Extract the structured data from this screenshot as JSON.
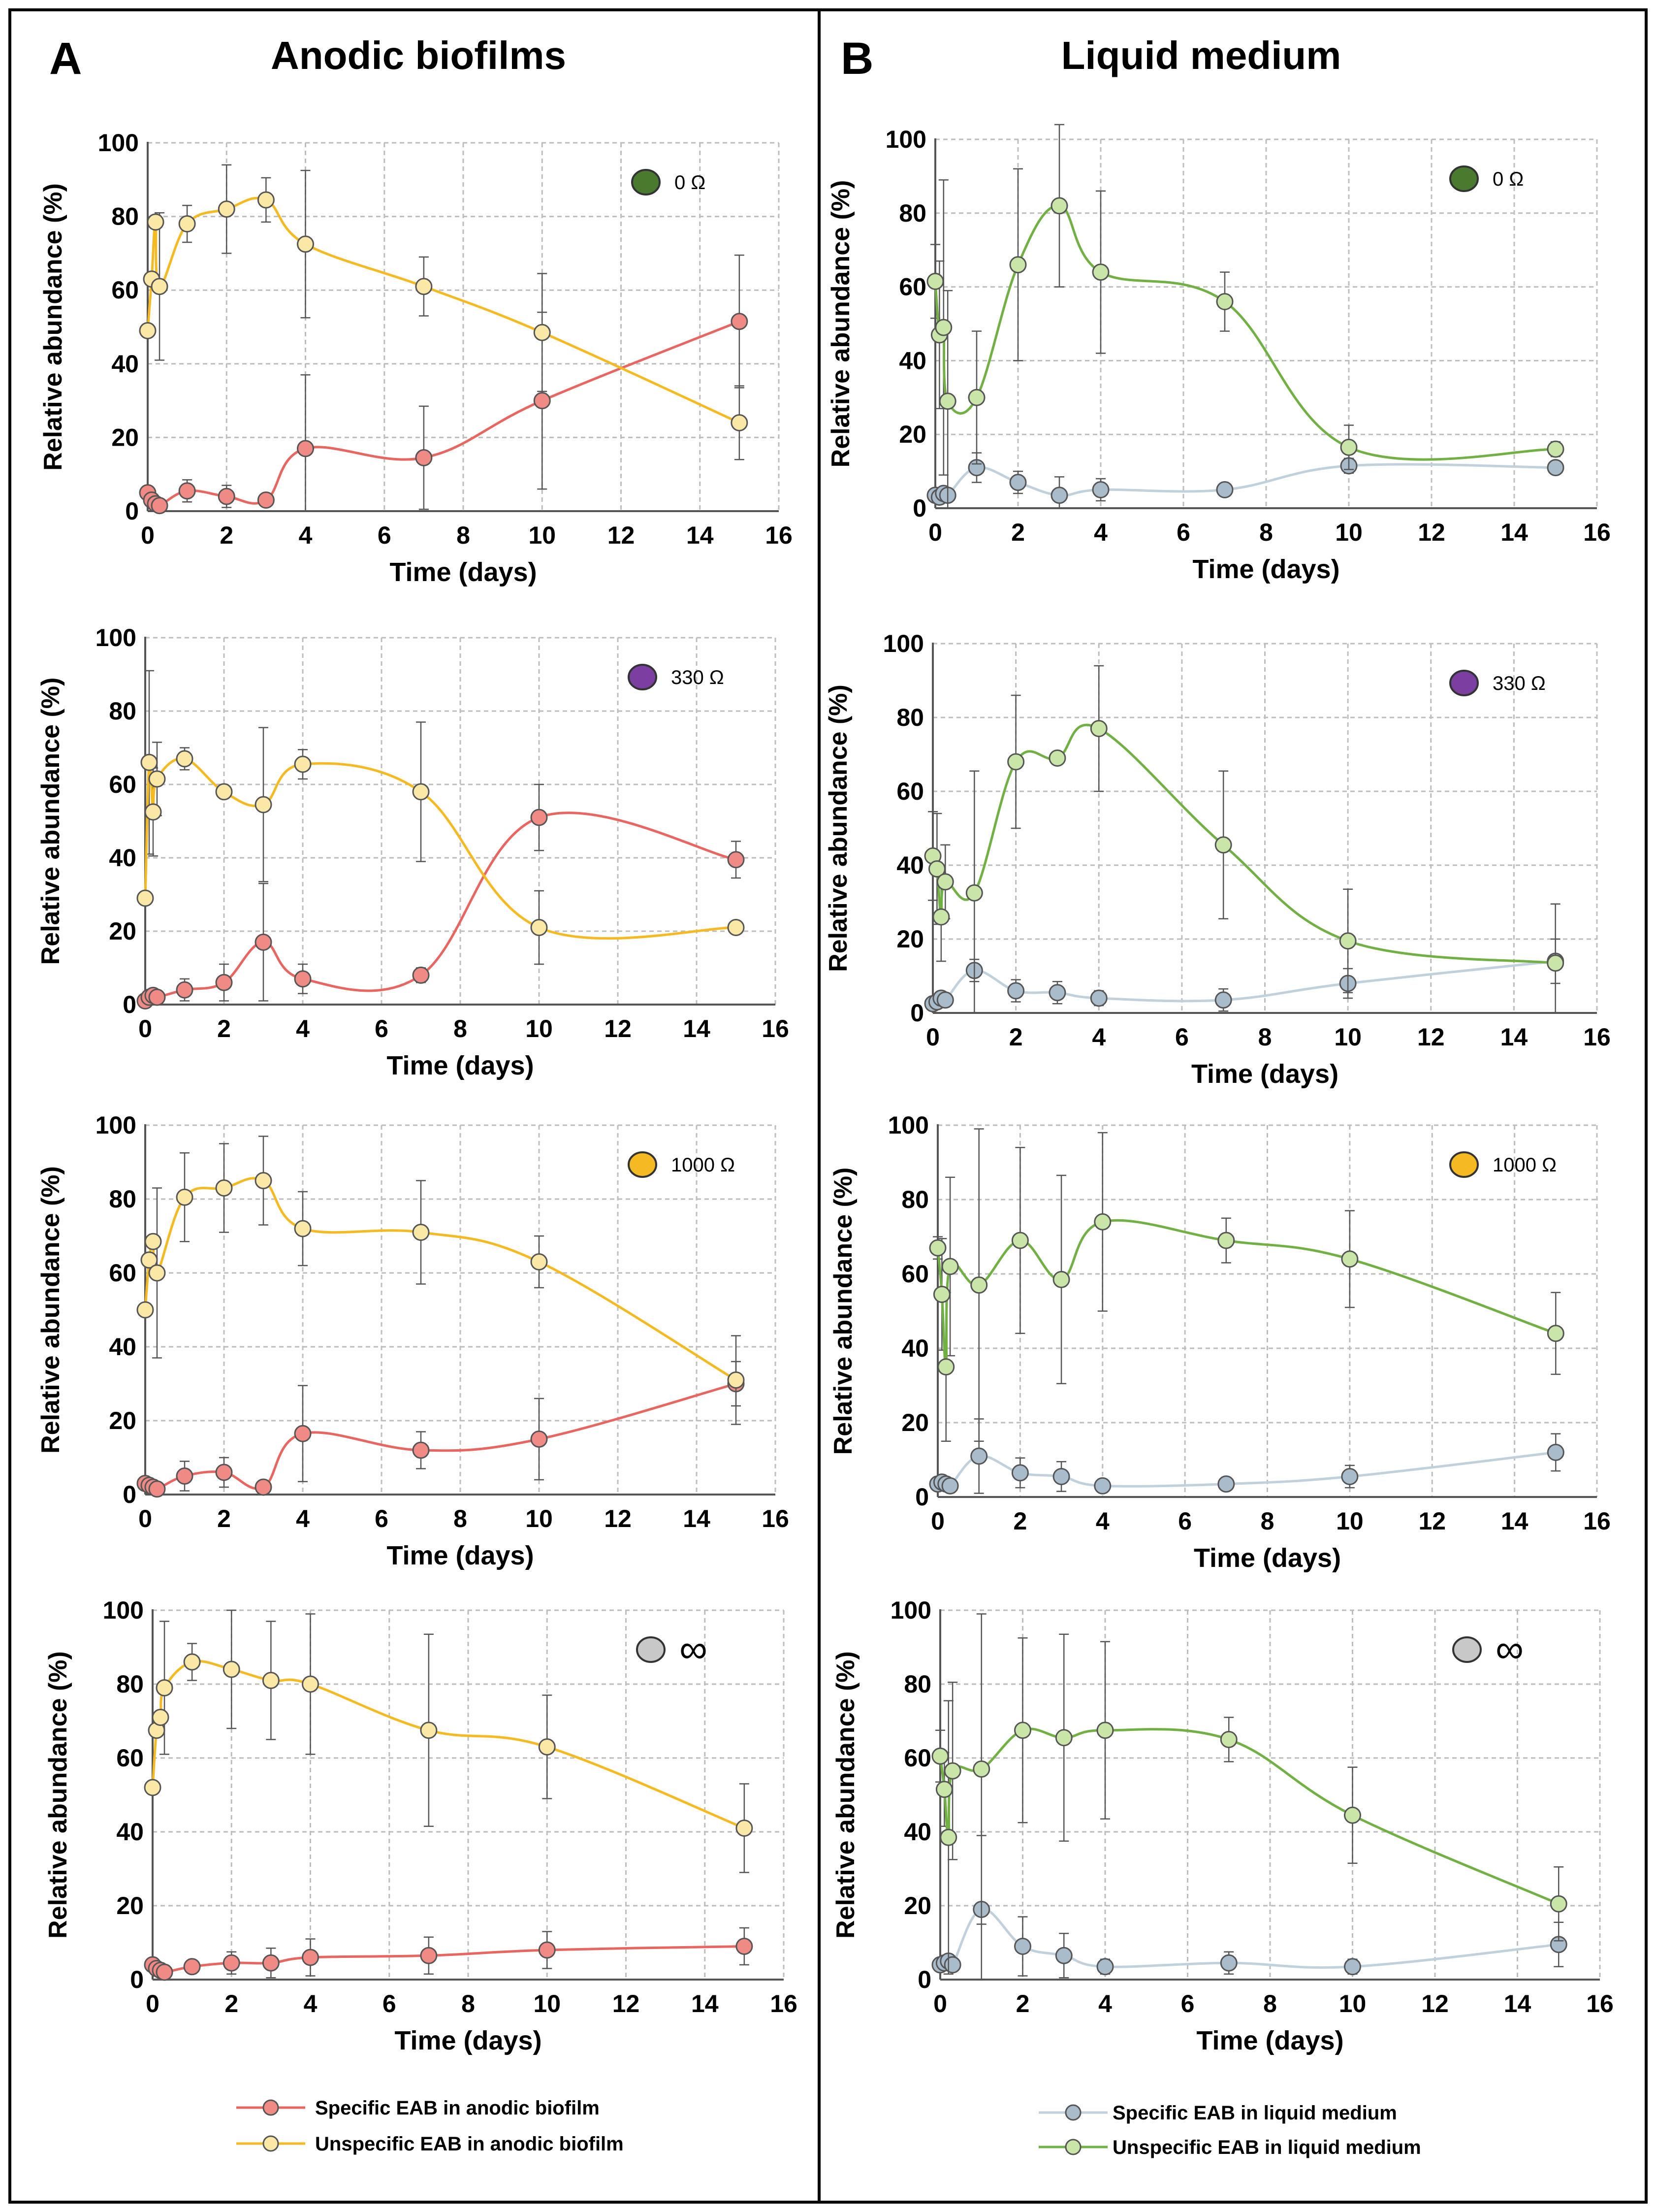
{
  "figure": {
    "panel_a": {
      "letter": "A",
      "title": "Anodic biofilms"
    },
    "panel_b": {
      "letter": "B",
      "title": "Liquid medium"
    },
    "legend_a": {
      "specific": "Specific EAB in anodic biofilm",
      "unspecific": "Unspecific EAB in anodic biofilm"
    },
    "legend_b": {
      "specific": "Specific EAB in liquid medium",
      "unspecific": "Unspecific EAB in liquid medium"
    }
  },
  "colors": {
    "specific_biofilm_fill": "#f08a85",
    "specific_biofilm_line": "#e8665f",
    "unspecific_biofilm_fill": "#fbe8a6",
    "unspecific_biofilm_line": "#f5b921",
    "specific_liquid_fill": "#a9bccb",
    "specific_liquid_line": "#c0d0dc",
    "unspecific_liquid_fill": "#c9e6a8",
    "unspecific_liquid_line": "#71b043",
    "res_0": "#4a7a2e",
    "res_330": "#7a3fa0",
    "res_1000": "#f5b921",
    "res_inf": "#c8c8c8"
  },
  "chart_data": [
    {
      "type": "line",
      "panel": "A",
      "xlabel": "Time (days)",
      "ylabel": "Relative abundance (%)",
      "xlim": [
        0,
        16
      ],
      "ylim": [
        0,
        100
      ],
      "xticks": [
        "0",
        "2",
        "4",
        "6",
        "8",
        "10",
        "12",
        "14",
        "16"
      ],
      "yticks": [
        "0",
        "20",
        "40",
        "60",
        "80",
        "100"
      ],
      "resistance": "0 Ω",
      "marker_color": "#4a7a2e",
      "series": [
        {
          "name": "Specific EAB in anodic biofilm",
          "x": [
            0,
            0.1,
            0.2,
            0.3,
            1,
            2,
            3,
            4,
            7,
            10,
            15
          ],
          "y": [
            5,
            3,
            2,
            1.5,
            5.5,
            4,
            3,
            17,
            14.5,
            30,
            51.5
          ],
          "err": [
            0,
            0,
            0,
            0,
            3,
            3,
            0,
            20,
            14,
            24,
            18
          ]
        },
        {
          "name": "Unspecific EAB in anodic biofilm",
          "x": [
            0,
            0.1,
            0.2,
            0.3,
            1,
            2,
            3,
            4,
            7,
            10,
            15
          ],
          "y": [
            49,
            63,
            78.5,
            61,
            78,
            82,
            84.5,
            72.5,
            61,
            48.5,
            24
          ],
          "err": [
            0,
            0,
            0,
            20,
            5,
            12,
            6,
            20,
            8,
            16,
            10
          ]
        }
      ]
    },
    {
      "type": "line",
      "panel": "B",
      "xlabel": "Time (days)",
      "ylabel": "Relative abundance (%)",
      "xlim": [
        0,
        16
      ],
      "ylim": [
        0,
        100
      ],
      "xticks": [
        "0",
        "2",
        "4",
        "6",
        "8",
        "10",
        "12",
        "14",
        "16"
      ],
      "yticks": [
        "0",
        "20",
        "40",
        "60",
        "80",
        "100"
      ],
      "resistance": "0 Ω",
      "marker_color": "#4a7a2e",
      "series": [
        {
          "name": "Specific EAB in liquid medium",
          "x": [
            0,
            0.1,
            0.2,
            0.3,
            1,
            2,
            3,
            4,
            7,
            10,
            15
          ],
          "y": [
            3.5,
            3,
            4,
            3.5,
            11,
            7,
            3.5,
            5,
            5,
            11.5,
            11
          ],
          "err": [
            0,
            0,
            0,
            0,
            4,
            3,
            5,
            3,
            1,
            2,
            1
          ]
        },
        {
          "name": "Unspecific EAB in liquid medium",
          "x": [
            0,
            0.1,
            0.2,
            0.3,
            1,
            2,
            3,
            4,
            7,
            10,
            15
          ],
          "y": [
            61.5,
            47,
            49,
            29,
            30,
            66,
            82,
            64,
            56,
            16.5,
            16
          ],
          "err": [
            10,
            20,
            40,
            30,
            18,
            26,
            22,
            22,
            8,
            6,
            2
          ]
        }
      ]
    },
    {
      "type": "line",
      "panel": "A",
      "xlabel": "Time (days)",
      "ylabel": "Relative abundance (%)",
      "xlim": [
        0,
        16
      ],
      "ylim": [
        0,
        100
      ],
      "xticks": [
        "0",
        "2",
        "4",
        "6",
        "8",
        "10",
        "12",
        "14",
        "16"
      ],
      "yticks": [
        "0",
        "20",
        "40",
        "60",
        "80",
        "100"
      ],
      "resistance": "330 Ω",
      "marker_color": "#7a3fa0",
      "series": [
        {
          "name": "Specific EAB in anodic biofilm",
          "x": [
            0,
            0.1,
            0.2,
            0.3,
            1,
            2,
            3,
            4,
            7,
            10,
            15
          ],
          "y": [
            1,
            2,
            2.5,
            2,
            4,
            6,
            17,
            7,
            8,
            51,
            39.5
          ],
          "err": [
            0,
            0,
            0,
            0,
            3,
            5,
            16,
            4,
            2,
            9,
            5
          ]
        },
        {
          "name": "Unspecific EAB in anodic biofilm",
          "x": [
            0,
            0.1,
            0.2,
            0.3,
            1,
            2,
            3,
            4,
            7,
            10,
            15
          ],
          "y": [
            29,
            66,
            52.5,
            61.5,
            67,
            58,
            54.5,
            65.5,
            58,
            21,
            21
          ],
          "err": [
            0,
            25,
            12,
            10,
            3,
            0,
            21,
            4,
            19,
            10,
            1
          ]
        }
      ]
    },
    {
      "type": "line",
      "panel": "B",
      "xlabel": "Time (days)",
      "ylabel": "Relative abundance (%)",
      "xlim": [
        0,
        16
      ],
      "ylim": [
        0,
        100
      ],
      "xticks": [
        "0",
        "2",
        "4",
        "6",
        "8",
        "10",
        "12",
        "14",
        "16"
      ],
      "yticks": [
        "0",
        "20",
        "40",
        "60",
        "80",
        "100"
      ],
      "resistance": "330 Ω",
      "marker_color": "#7a3fa0",
      "series": [
        {
          "name": "Specific EAB in liquid medium",
          "x": [
            0,
            0.1,
            0.2,
            0.3,
            1,
            2,
            3,
            4,
            7,
            10,
            15
          ],
          "y": [
            2.5,
            3,
            4,
            3.5,
            11.5,
            6,
            5.5,
            4,
            3.5,
            8,
            14
          ],
          "err": [
            0,
            0,
            0,
            0,
            3,
            3,
            3,
            2,
            3,
            4,
            6
          ]
        },
        {
          "name": "Unspecific EAB in liquid medium",
          "x": [
            0,
            0.1,
            0.2,
            0.3,
            1,
            2,
            3,
            4,
            7,
            10,
            15
          ],
          "y": [
            42.5,
            39,
            26,
            35.5,
            32.5,
            68,
            69,
            77,
            45.5,
            19.5,
            13.5
          ],
          "err": [
            12,
            15,
            12,
            10,
            33,
            18,
            0,
            17,
            20,
            14,
            16
          ]
        }
      ]
    },
    {
      "type": "line",
      "panel": "A",
      "xlabel": "Time (days)",
      "ylabel": "Relative abundance (%)",
      "xlim": [
        0,
        16
      ],
      "ylim": [
        0,
        100
      ],
      "xticks": [
        "0",
        "2",
        "4",
        "6",
        "8",
        "10",
        "12",
        "14",
        "16"
      ],
      "yticks": [
        "0",
        "20",
        "40",
        "60",
        "80",
        "100"
      ],
      "resistance": "1000 Ω",
      "marker_color": "#f5b921",
      "series": [
        {
          "name": "Specific EAB in anodic biofilm",
          "x": [
            0,
            0.1,
            0.2,
            0.3,
            1,
            2,
            3,
            4,
            7,
            10,
            15
          ],
          "y": [
            3,
            2.5,
            2,
            1.5,
            5,
            6,
            2,
            16.5,
            12,
            15,
            30
          ],
          "err": [
            0,
            0,
            0,
            0,
            4,
            4,
            0,
            13,
            5,
            11,
            6
          ]
        },
        {
          "name": "Unspecific EAB in anodic biofilm",
          "x": [
            0,
            0.1,
            0.2,
            0.3,
            1,
            2,
            3,
            4,
            7,
            10,
            15
          ],
          "y": [
            50,
            63.5,
            68.5,
            60,
            80.5,
            83,
            85,
            72,
            71,
            63,
            31
          ],
          "err": [
            0,
            0,
            0,
            23,
            12,
            12,
            12,
            10,
            14,
            7,
            12
          ]
        }
      ]
    },
    {
      "type": "line",
      "panel": "B",
      "xlabel": "Time (days)",
      "ylabel": "Relative abundance (%)",
      "xlim": [
        0,
        16
      ],
      "ylim": [
        0,
        100
      ],
      "xticks": [
        "0",
        "2",
        "4",
        "6",
        "8",
        "10",
        "12",
        "14",
        "16"
      ],
      "yticks": [
        "0",
        "20",
        "40",
        "60",
        "80",
        "100"
      ],
      "resistance": "1000 Ω",
      "marker_color": "#f5b921",
      "series": [
        {
          "name": "Specific EAB in liquid medium",
          "x": [
            0,
            0.1,
            0.2,
            0.3,
            1,
            2,
            3,
            4,
            7,
            10,
            15
          ],
          "y": [
            3.5,
            4,
            3.5,
            3,
            11,
            6.5,
            5.5,
            3,
            3.5,
            5.5,
            12
          ],
          "err": [
            0,
            0,
            0,
            0,
            10,
            4,
            4,
            1,
            1,
            3,
            5
          ]
        },
        {
          "name": "Unspecific EAB in liquid medium",
          "x": [
            0,
            0.1,
            0.2,
            0.3,
            1,
            2,
            3,
            4,
            7,
            10,
            15
          ],
          "y": [
            67,
            54.5,
            35,
            62,
            57,
            69,
            58.5,
            74,
            69,
            64,
            44
          ],
          "err": [
            3,
            15,
            20,
            24,
            42,
            25,
            28,
            24,
            6,
            13,
            11
          ]
        }
      ]
    },
    {
      "type": "line",
      "panel": "A",
      "xlabel": "Time (days)",
      "ylabel": "Relative abundance (%)",
      "xlim": [
        0,
        16
      ],
      "ylim": [
        0,
        100
      ],
      "xticks": [
        "0",
        "2",
        "4",
        "6",
        "8",
        "10",
        "12",
        "14",
        "16"
      ],
      "yticks": [
        "0",
        "20",
        "40",
        "60",
        "80",
        "100"
      ],
      "resistance": "∞",
      "marker_color": "#c8c8c8",
      "series": [
        {
          "name": "Specific EAB in anodic biofilm",
          "x": [
            0,
            0.1,
            0.2,
            0.3,
            1,
            2,
            3,
            4,
            7,
            10,
            15
          ],
          "y": [
            4,
            3,
            2.5,
            2,
            3.5,
            4.5,
            4.5,
            6,
            6.5,
            8,
            9
          ],
          "err": [
            0,
            0,
            0,
            0,
            1,
            3,
            4,
            5,
            5,
            5,
            5
          ]
        },
        {
          "name": "Unspecific EAB in anodic biofilm",
          "x": [
            0,
            0.1,
            0.2,
            0.3,
            1,
            2,
            3,
            4,
            7,
            10,
            15
          ],
          "y": [
            52,
            67.5,
            71,
            79,
            86,
            84,
            81,
            80,
            67.5,
            63,
            41
          ],
          "err": [
            0,
            0,
            0,
            18,
            5,
            16,
            16,
            19,
            26,
            14,
            12
          ]
        }
      ]
    },
    {
      "type": "line",
      "panel": "B",
      "xlabel": "Time (days)",
      "ylabel": "Relative abundance (%)",
      "xlim": [
        0,
        16
      ],
      "ylim": [
        0,
        100
      ],
      "xticks": [
        "0",
        "2",
        "4",
        "6",
        "8",
        "10",
        "12",
        "14",
        "16"
      ],
      "yticks": [
        "0",
        "20",
        "40",
        "60",
        "80",
        "100"
      ],
      "resistance": "∞",
      "marker_color": "#c8c8c8",
      "series": [
        {
          "name": "Specific EAB in liquid medium",
          "x": [
            0,
            0.1,
            0.2,
            0.3,
            1,
            2,
            3,
            4,
            7,
            10,
            15
          ],
          "y": [
            4,
            4.5,
            5,
            4,
            19,
            9,
            6.5,
            3.5,
            4.5,
            3.5,
            9.5
          ],
          "err": [
            0,
            0,
            0,
            0,
            20,
            8,
            6,
            2,
            3,
            2,
            6
          ]
        },
        {
          "name": "Unspecific EAB in liquid medium",
          "x": [
            0,
            0.1,
            0.2,
            0.3,
            1,
            2,
            3,
            4,
            7,
            10,
            15
          ],
          "y": [
            60.5,
            51.5,
            38.5,
            56.5,
            57,
            67.5,
            65.5,
            67.5,
            65,
            44.5,
            20.5
          ],
          "err": [
            7,
            10,
            37,
            24,
            42,
            25,
            28,
            24,
            6,
            13,
            10
          ]
        }
      ]
    }
  ]
}
